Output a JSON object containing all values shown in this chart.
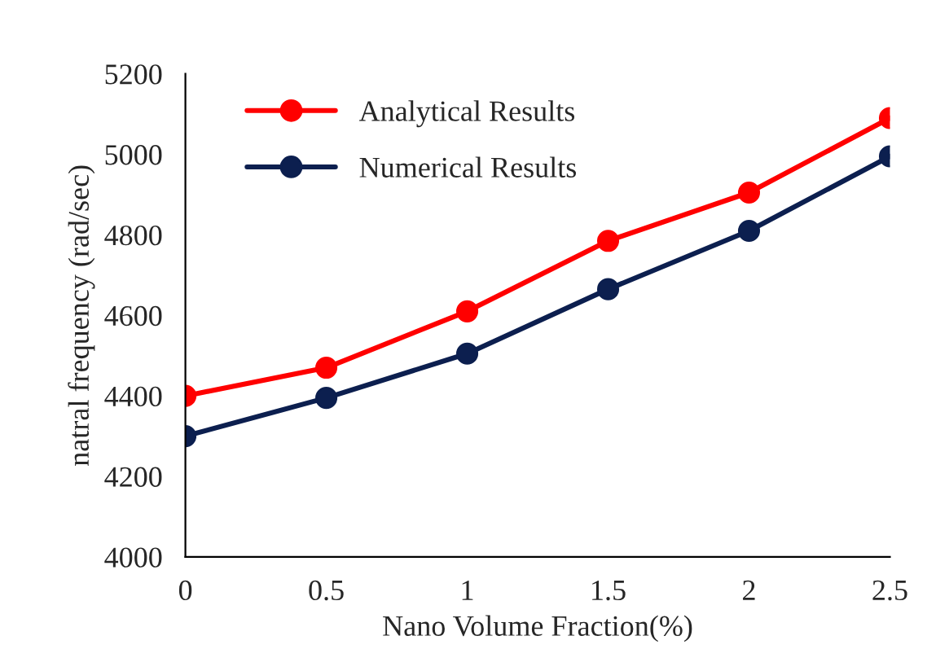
{
  "chart_data": {
    "type": "line",
    "xlabel": "Nano Volume Fraction(%)",
    "ylabel": "natral frequency (rad/sec)",
    "x": [
      0,
      0.5,
      1,
      1.5,
      2,
      2.5
    ],
    "series": [
      {
        "name": "Analytical Results",
        "color": "#ff0000",
        "values": [
          4400,
          4470,
          4610,
          4785,
          4905,
          5090
        ]
      },
      {
        "name": "Numerical Results",
        "color": "#0c1f4f",
        "values": [
          4300,
          4395,
          4505,
          4665,
          4810,
          4995
        ]
      }
    ],
    "xlim": [
      0,
      2.5
    ],
    "xticks": [
      0,
      0.5,
      1,
      1.5,
      2,
      2.5
    ],
    "ylim": [
      4000,
      5200
    ],
    "yticks": [
      4000,
      4200,
      4400,
      4600,
      4800,
      5000,
      5200
    ],
    "grid": false,
    "legend": "top left",
    "marker": "circle",
    "line_style": "solid"
  }
}
